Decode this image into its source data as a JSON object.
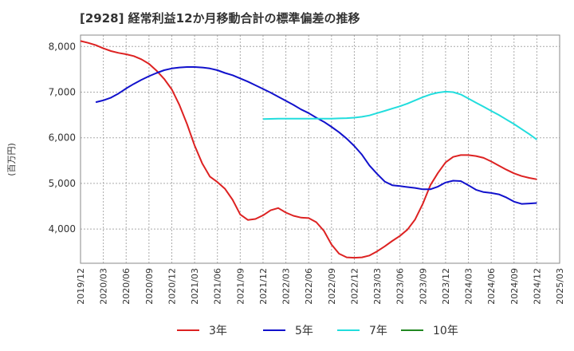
{
  "chart_data": {
    "type": "line",
    "title": "[2928]  経常利益12か月移動合計の標準偏差の推移",
    "ylabel": "(百万円)",
    "xlabel": "",
    "ylim": [
      3250,
      8250
    ],
    "yticks": [
      4000,
      5000,
      6000,
      7000,
      8000
    ],
    "ytick_labels": [
      "4,000",
      "5,000",
      "6,000",
      "7,000",
      "8,000"
    ],
    "xtick_labels": [
      "2019/12",
      "2020/03",
      "2020/06",
      "2020/09",
      "2020/12",
      "2021/03",
      "2021/06",
      "2021/09",
      "2021/12",
      "2022/03",
      "2022/06",
      "2022/09",
      "2022/12",
      "2023/03",
      "2023/06",
      "2023/09",
      "2023/12",
      "2024/03",
      "2024/06",
      "2024/09",
      "2024/12",
      "2025/03"
    ],
    "grid": true,
    "legend_position": "bottom",
    "series": [
      {
        "name": "3年",
        "color": "#dd2222",
        "values": [
          [
            "2019/12",
            8120
          ],
          [
            "2020/01",
            8080
          ],
          [
            "2020/02",
            8030
          ],
          [
            "2020/03",
            7960
          ],
          [
            "2020/04",
            7900
          ],
          [
            "2020/05",
            7860
          ],
          [
            "2020/06",
            7830
          ],
          [
            "2020/07",
            7790
          ],
          [
            "2020/08",
            7720
          ],
          [
            "2020/09",
            7620
          ],
          [
            "2020/10",
            7470
          ],
          [
            "2020/11",
            7290
          ],
          [
            "2020/12",
            7060
          ],
          [
            "2021/01",
            6720
          ],
          [
            "2021/02",
            6300
          ],
          [
            "2021/03",
            5830
          ],
          [
            "2021/04",
            5440
          ],
          [
            "2021/05",
            5150
          ],
          [
            "2021/06",
            5030
          ],
          [
            "2021/07",
            4880
          ],
          [
            "2021/08",
            4640
          ],
          [
            "2021/09",
            4320
          ],
          [
            "2021/10",
            4200
          ],
          [
            "2021/11",
            4220
          ],
          [
            "2021/12",
            4300
          ],
          [
            "2022/01",
            4410
          ],
          [
            "2022/02",
            4460
          ],
          [
            "2022/03",
            4360
          ],
          [
            "2022/04",
            4290
          ],
          [
            "2022/05",
            4250
          ],
          [
            "2022/06",
            4240
          ],
          [
            "2022/07",
            4150
          ],
          [
            "2022/08",
            3960
          ],
          [
            "2022/09",
            3660
          ],
          [
            "2022/10",
            3460
          ],
          [
            "2022/11",
            3380
          ],
          [
            "2022/12",
            3370
          ],
          [
            "2023/01",
            3380
          ],
          [
            "2023/02",
            3420
          ],
          [
            "2023/03",
            3510
          ],
          [
            "2023/04",
            3620
          ],
          [
            "2023/05",
            3740
          ],
          [
            "2023/06",
            3850
          ],
          [
            "2023/07",
            3990
          ],
          [
            "2023/08",
            4210
          ],
          [
            "2023/09",
            4550
          ],
          [
            "2023/10",
            4960
          ],
          [
            "2023/11",
            5230
          ],
          [
            "2023/12",
            5460
          ],
          [
            "2024/01",
            5580
          ],
          [
            "2024/02",
            5620
          ],
          [
            "2024/03",
            5620
          ],
          [
            "2024/04",
            5600
          ],
          [
            "2024/05",
            5560
          ],
          [
            "2024/06",
            5480
          ],
          [
            "2024/07",
            5390
          ],
          [
            "2024/08",
            5300
          ],
          [
            "2024/09",
            5220
          ],
          [
            "2024/10",
            5160
          ],
          [
            "2024/11",
            5120
          ],
          [
            "2024/12",
            5090
          ]
        ]
      },
      {
        "name": "5年",
        "color": "#1111cc",
        "values": [
          [
            "2020/02",
            6780
          ],
          [
            "2020/03",
            6820
          ],
          [
            "2020/04",
            6880
          ],
          [
            "2020/05",
            6970
          ],
          [
            "2020/06",
            7080
          ],
          [
            "2020/07",
            7180
          ],
          [
            "2020/08",
            7270
          ],
          [
            "2020/09",
            7350
          ],
          [
            "2020/10",
            7420
          ],
          [
            "2020/11",
            7480
          ],
          [
            "2020/12",
            7520
          ],
          [
            "2021/01",
            7540
          ],
          [
            "2021/02",
            7550
          ],
          [
            "2021/03",
            7550
          ],
          [
            "2021/04",
            7540
          ],
          [
            "2021/05",
            7520
          ],
          [
            "2021/06",
            7480
          ],
          [
            "2021/07",
            7420
          ],
          [
            "2021/08",
            7370
          ],
          [
            "2021/09",
            7300
          ],
          [
            "2021/10",
            7230
          ],
          [
            "2021/11",
            7150
          ],
          [
            "2021/12",
            7070
          ],
          [
            "2022/01",
            6990
          ],
          [
            "2022/02",
            6900
          ],
          [
            "2022/03",
            6810
          ],
          [
            "2022/04",
            6720
          ],
          [
            "2022/05",
            6620
          ],
          [
            "2022/06",
            6540
          ],
          [
            "2022/07",
            6440
          ],
          [
            "2022/08",
            6350
          ],
          [
            "2022/09",
            6240
          ],
          [
            "2022/10",
            6120
          ],
          [
            "2022/11",
            5980
          ],
          [
            "2022/12",
            5820
          ],
          [
            "2023/01",
            5630
          ],
          [
            "2023/02",
            5390
          ],
          [
            "2023/03",
            5210
          ],
          [
            "2023/04",
            5040
          ],
          [
            "2023/05",
            4960
          ],
          [
            "2023/06",
            4940
          ],
          [
            "2023/07",
            4920
          ],
          [
            "2023/08",
            4900
          ],
          [
            "2023/09",
            4870
          ],
          [
            "2023/10",
            4870
          ],
          [
            "2023/11",
            4930
          ],
          [
            "2023/12",
            5020
          ],
          [
            "2024/01",
            5060
          ],
          [
            "2024/02",
            5050
          ],
          [
            "2024/03",
            4960
          ],
          [
            "2024/04",
            4860
          ],
          [
            "2024/05",
            4810
          ],
          [
            "2024/06",
            4790
          ],
          [
            "2024/07",
            4760
          ],
          [
            "2024/08",
            4690
          ],
          [
            "2024/09",
            4600
          ],
          [
            "2024/10",
            4550
          ],
          [
            "2024/11",
            4560
          ],
          [
            "2024/12",
            4570
          ]
        ]
      },
      {
        "name": "7年",
        "color": "#22dddd",
        "values": [
          [
            "2021/12",
            6410
          ],
          [
            "2022/01",
            6415
          ],
          [
            "2022/02",
            6420
          ],
          [
            "2022/03",
            6420
          ],
          [
            "2022/04",
            6420
          ],
          [
            "2022/05",
            6420
          ],
          [
            "2022/06",
            6420
          ],
          [
            "2022/07",
            6420
          ],
          [
            "2022/08",
            6420
          ],
          [
            "2022/09",
            6420
          ],
          [
            "2022/10",
            6425
          ],
          [
            "2022/11",
            6430
          ],
          [
            "2022/12",
            6440
          ],
          [
            "2023/01",
            6460
          ],
          [
            "2023/02",
            6490
          ],
          [
            "2023/03",
            6540
          ],
          [
            "2023/04",
            6590
          ],
          [
            "2023/05",
            6640
          ],
          [
            "2023/06",
            6690
          ],
          [
            "2023/07",
            6750
          ],
          [
            "2023/08",
            6820
          ],
          [
            "2023/09",
            6890
          ],
          [
            "2023/10",
            6950
          ],
          [
            "2023/11",
            6990
          ],
          [
            "2023/12",
            7010
          ],
          [
            "2024/01",
            7000
          ],
          [
            "2024/02",
            6950
          ],
          [
            "2024/03",
            6860
          ],
          [
            "2024/04",
            6770
          ],
          [
            "2024/05",
            6680
          ],
          [
            "2024/06",
            6590
          ],
          [
            "2024/07",
            6500
          ],
          [
            "2024/08",
            6400
          ],
          [
            "2024/09",
            6300
          ],
          [
            "2024/10",
            6190
          ],
          [
            "2024/11",
            6080
          ],
          [
            "2024/12",
            5960
          ]
        ]
      },
      {
        "name": "10年",
        "color": "#228822",
        "values": []
      }
    ]
  }
}
